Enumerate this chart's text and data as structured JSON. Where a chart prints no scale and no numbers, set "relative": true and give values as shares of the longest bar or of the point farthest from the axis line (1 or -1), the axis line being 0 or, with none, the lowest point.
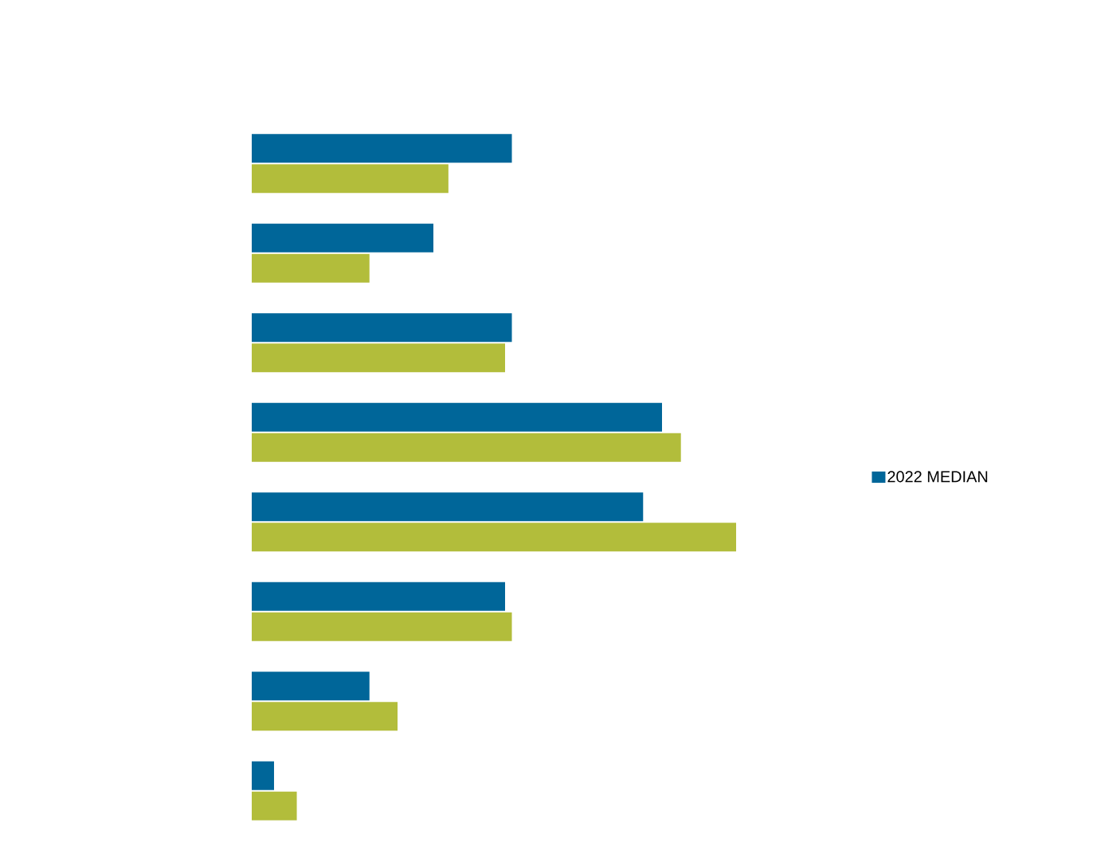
{
  "chart_data": {
    "type": "bar",
    "orientation": "horizontal",
    "relative": true,
    "categories": [
      null,
      null,
      null,
      null,
      null,
      null,
      null,
      null
    ],
    "series": [
      {
        "name": "2022 MEDIAN",
        "color": "#006699",
        "values": [
          0.537,
          0.375,
          0.537,
          0.847,
          0.808,
          0.523,
          0.243,
          0.046
        ]
      },
      {
        "color": "#b2bd3b",
        "values": [
          0.406,
          0.243,
          0.523,
          0.886,
          1,
          0.537,
          0.301,
          0.093
        ]
      }
    ],
    "legend": "right"
  }
}
